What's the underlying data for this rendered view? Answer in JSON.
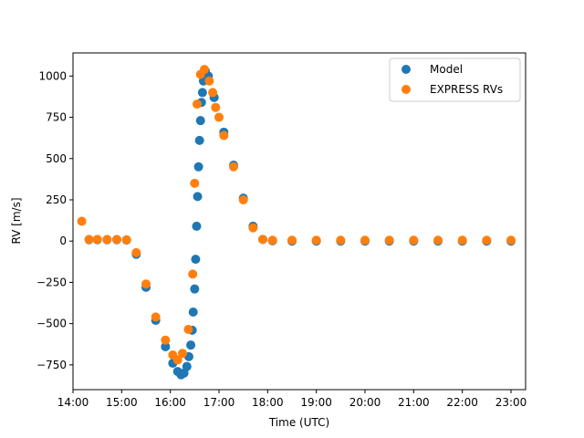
{
  "chart_data": {
    "type": "scatter",
    "title": "",
    "xlabel": "Time (UTC)",
    "ylabel": "RV [m/s]",
    "x_unit": "hours (UTC, decimal)",
    "xlim": [
      14.0,
      23.3
    ],
    "ylim": [
      -900,
      1140
    ],
    "x_ticks": [
      14,
      15,
      16,
      17,
      18,
      19,
      20,
      21,
      22,
      23
    ],
    "x_tick_labels": [
      "14:00",
      "15:00",
      "16:00",
      "17:00",
      "18:00",
      "19:00",
      "20:00",
      "21:00",
      "22:00",
      "23:00"
    ],
    "y_ticks": [
      -750,
      -500,
      -250,
      0,
      250,
      500,
      750,
      1000
    ],
    "y_tick_labels": [
      "−750",
      "−500",
      "−250",
      "0",
      "250",
      "500",
      "750",
      "1000"
    ],
    "grid": false,
    "legend_position": "top-right",
    "series": [
      {
        "name": "Model",
        "color": "#1f77b4",
        "points": [
          [
            14.33,
            8
          ],
          [
            14.5,
            8
          ],
          [
            14.7,
            8
          ],
          [
            14.9,
            8
          ],
          [
            15.1,
            6
          ],
          [
            15.3,
            -80
          ],
          [
            15.5,
            -280
          ],
          [
            15.7,
            -480
          ],
          [
            15.9,
            -640
          ],
          [
            16.05,
            -740
          ],
          [
            16.15,
            -790
          ],
          [
            16.22,
            -810
          ],
          [
            16.28,
            -800
          ],
          [
            16.34,
            -760
          ],
          [
            16.38,
            -700
          ],
          [
            16.42,
            -630
          ],
          [
            16.45,
            -540
          ],
          [
            16.47,
            -430
          ],
          [
            16.5,
            -290
          ],
          [
            16.52,
            -110
          ],
          [
            16.54,
            90
          ],
          [
            16.56,
            270
          ],
          [
            16.58,
            450
          ],
          [
            16.6,
            610
          ],
          [
            16.62,
            730
          ],
          [
            16.64,
            840
          ],
          [
            16.66,
            900
          ],
          [
            16.68,
            970
          ],
          [
            16.72,
            1030
          ],
          [
            16.78,
            1000
          ],
          [
            16.9,
            870
          ],
          [
            17.1,
            660
          ],
          [
            17.3,
            460
          ],
          [
            17.5,
            260
          ],
          [
            17.7,
            90
          ],
          [
            17.9,
            10
          ],
          [
            18.1,
            2
          ],
          [
            18.5,
            0
          ],
          [
            19.0,
            0
          ],
          [
            19.5,
            0
          ],
          [
            20.0,
            0
          ],
          [
            20.5,
            0
          ],
          [
            21.0,
            0
          ],
          [
            21.5,
            0
          ],
          [
            22.0,
            0
          ],
          [
            22.5,
            0
          ],
          [
            23.0,
            0
          ]
        ]
      },
      {
        "name": "EXPRESS RVs",
        "color": "#ff7f0e",
        "points": [
          [
            14.18,
            120
          ],
          [
            14.33,
            10
          ],
          [
            14.5,
            10
          ],
          [
            14.7,
            10
          ],
          [
            14.9,
            10
          ],
          [
            15.1,
            8
          ],
          [
            15.3,
            -70
          ],
          [
            15.5,
            -260
          ],
          [
            15.7,
            -460
          ],
          [
            15.9,
            -600
          ],
          [
            16.05,
            -690
          ],
          [
            16.15,
            -720
          ],
          [
            16.25,
            -680
          ],
          [
            16.37,
            -535
          ],
          [
            16.46,
            -200
          ],
          [
            16.5,
            350
          ],
          [
            16.55,
            830
          ],
          [
            16.62,
            1010
          ],
          [
            16.7,
            1040
          ],
          [
            16.8,
            970
          ],
          [
            16.87,
            900
          ],
          [
            16.93,
            810
          ],
          [
            17.0,
            750
          ],
          [
            17.1,
            640
          ],
          [
            17.3,
            450
          ],
          [
            17.5,
            250
          ],
          [
            17.7,
            80
          ],
          [
            17.9,
            10
          ],
          [
            18.1,
            5
          ],
          [
            18.5,
            5
          ],
          [
            19.0,
            5
          ],
          [
            19.5,
            5
          ],
          [
            20.0,
            5
          ],
          [
            20.5,
            5
          ],
          [
            21.0,
            5
          ],
          [
            21.5,
            5
          ],
          [
            22.0,
            5
          ],
          [
            22.5,
            5
          ],
          [
            23.0,
            5
          ]
        ]
      }
    ]
  }
}
